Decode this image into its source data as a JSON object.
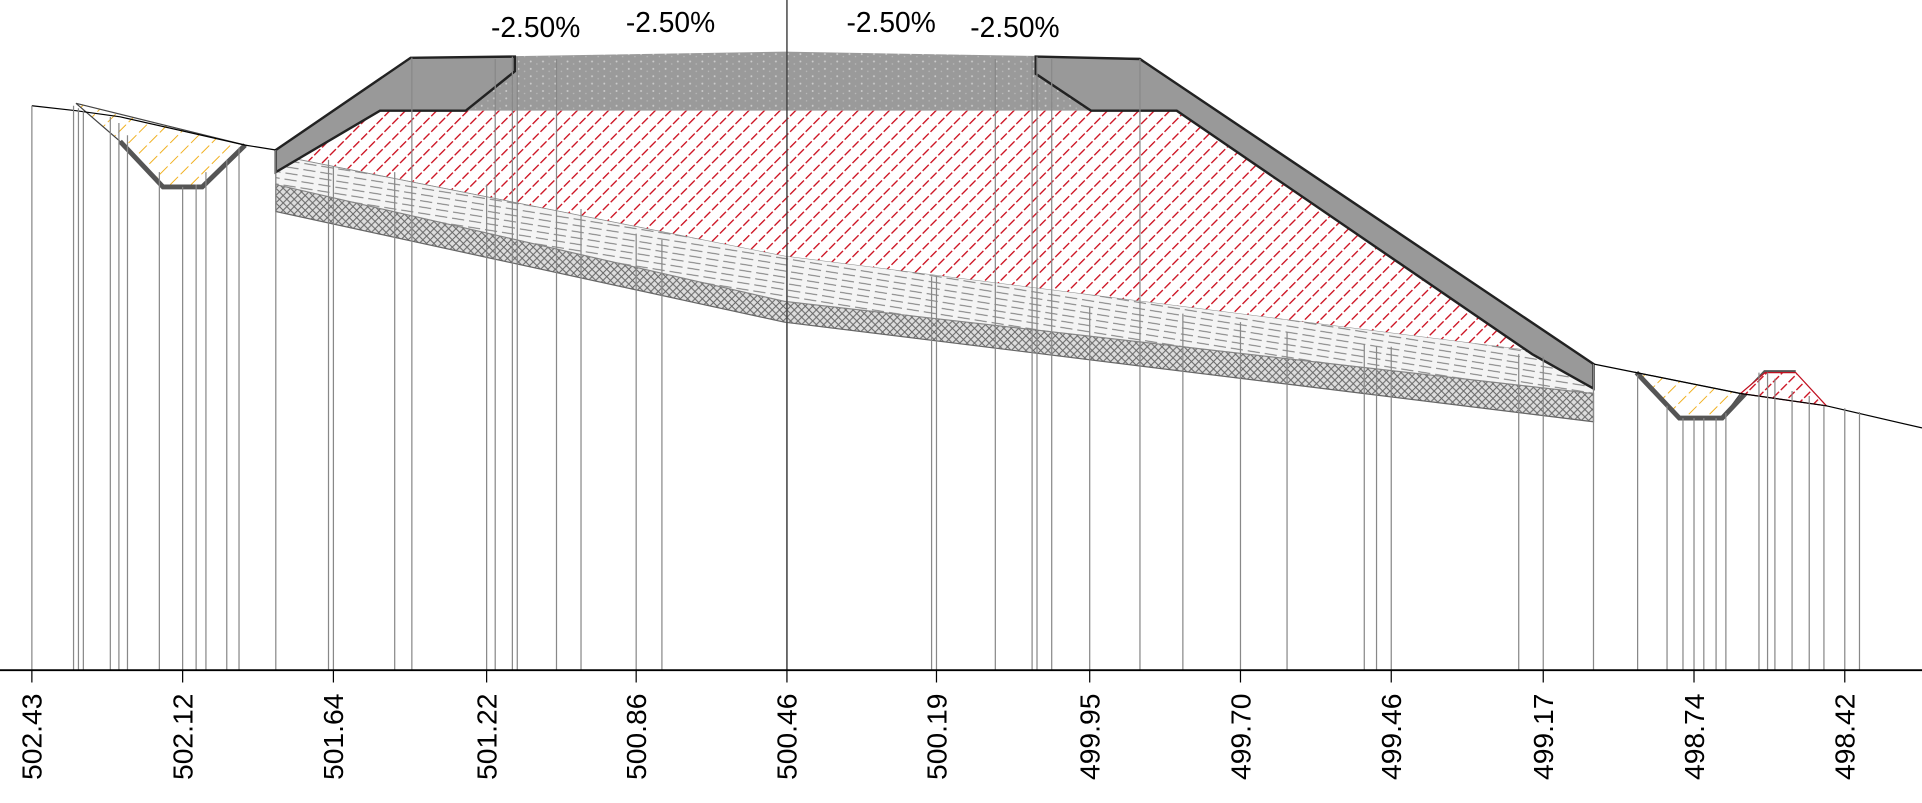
{
  "slope_labels": [
    "-2.50%",
    "-2.50%",
    "-2.50%",
    "-2.50%"
  ],
  "stations": [
    "502.43",
    "502.12",
    "501.64",
    "501.22",
    "500.86",
    "500.46",
    "500.19",
    "499.95",
    "499.70",
    "499.46",
    "499.17",
    "498.74",
    "498.42"
  ]
}
